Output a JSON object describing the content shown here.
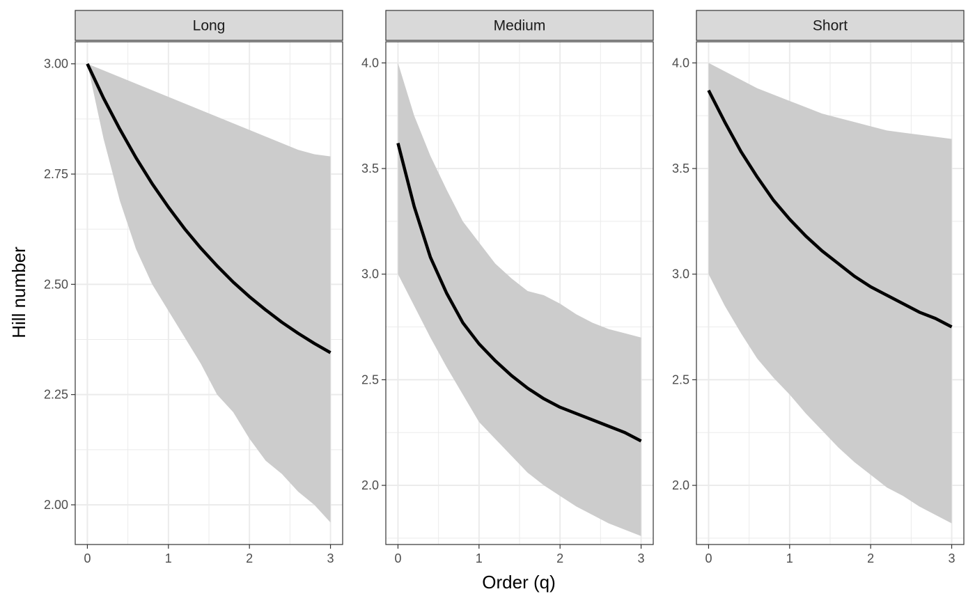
{
  "chart_data": {
    "type": "line",
    "layout": "facets",
    "xlabel": "Order (q)",
    "ylabel": "Hill number",
    "grid": true,
    "legend": "none",
    "colors": {
      "line": "#000000",
      "ribbon": "#cccccc",
      "strip": "#d9d9d9",
      "grid": "#ebebeb",
      "border": "#333333"
    },
    "facets": [
      {
        "label": "Long",
        "xlim": [
          -0.15,
          3.15
        ],
        "ylim": [
          1.91,
          3.05
        ],
        "x_ticks": [
          0,
          1,
          2,
          3
        ],
        "y_ticks": [
          2.0,
          2.25,
          2.5,
          2.75,
          3.0
        ],
        "y_tick_labels": [
          "2.00",
          "2.25",
          "2.50",
          "2.75",
          "3.00"
        ],
        "x": [
          0,
          0.2,
          0.4,
          0.6,
          0.8,
          1.0,
          1.2,
          1.4,
          1.6,
          1.8,
          2.0,
          2.2,
          2.4,
          2.6,
          2.8,
          3.0
        ],
        "line": [
          3.0,
          2.922,
          2.852,
          2.787,
          2.728,
          2.675,
          2.626,
          2.582,
          2.542,
          2.505,
          2.472,
          2.442,
          2.414,
          2.389,
          2.366,
          2.345
        ],
        "lower": [
          3.0,
          2.83,
          2.69,
          2.58,
          2.5,
          2.44,
          2.38,
          2.32,
          2.25,
          2.21,
          2.15,
          2.1,
          2.07,
          2.03,
          2.0,
          1.96
        ],
        "upper": [
          3.0,
          2.985,
          2.97,
          2.955,
          2.94,
          2.925,
          2.91,
          2.895,
          2.88,
          2.865,
          2.85,
          2.835,
          2.82,
          2.805,
          2.795,
          2.79
        ]
      },
      {
        "label": "Medium",
        "xlim": [
          -0.15,
          3.15
        ],
        "ylim": [
          1.72,
          4.1
        ],
        "x_ticks": [
          0,
          1,
          2,
          3
        ],
        "y_ticks": [
          2.0,
          2.5,
          3.0,
          3.5,
          4.0
        ],
        "y_tick_labels": [
          "2.0",
          "2.5",
          "3.0",
          "3.5",
          "4.0"
        ],
        "x": [
          0,
          0.2,
          0.4,
          0.6,
          0.8,
          1.0,
          1.2,
          1.4,
          1.6,
          1.8,
          2.0,
          2.2,
          2.4,
          2.6,
          2.8,
          3.0
        ],
        "line": [
          3.62,
          3.32,
          3.08,
          2.91,
          2.77,
          2.67,
          2.59,
          2.52,
          2.46,
          2.41,
          2.37,
          2.34,
          2.31,
          2.28,
          2.25,
          2.21
        ],
        "lower": [
          3.0,
          2.85,
          2.7,
          2.56,
          2.43,
          2.3,
          2.22,
          2.14,
          2.06,
          2.0,
          1.95,
          1.9,
          1.86,
          1.82,
          1.79,
          1.76
        ],
        "upper": [
          4.0,
          3.75,
          3.56,
          3.4,
          3.25,
          3.15,
          3.05,
          2.98,
          2.92,
          2.9,
          2.86,
          2.81,
          2.77,
          2.74,
          2.72,
          2.7
        ]
      },
      {
        "label": "Short",
        "xlim": [
          -0.15,
          3.15
        ],
        "ylim": [
          1.72,
          4.1
        ],
        "x_ticks": [
          0,
          1,
          2,
          3
        ],
        "y_ticks": [
          2.0,
          2.5,
          3.0,
          3.5,
          4.0
        ],
        "y_tick_labels": [
          "2.0",
          "2.5",
          "3.0",
          "3.5",
          "4.0"
        ],
        "x": [
          0,
          0.2,
          0.4,
          0.6,
          0.8,
          1.0,
          1.2,
          1.4,
          1.6,
          1.8,
          2.0,
          2.2,
          2.4,
          2.6,
          2.8,
          3.0
        ],
        "line": [
          3.87,
          3.72,
          3.58,
          3.46,
          3.35,
          3.26,
          3.18,
          3.11,
          3.05,
          2.99,
          2.94,
          2.9,
          2.86,
          2.82,
          2.79,
          2.75
        ],
        "lower": [
          3.0,
          2.85,
          2.72,
          2.6,
          2.51,
          2.43,
          2.34,
          2.26,
          2.18,
          2.11,
          2.05,
          1.99,
          1.95,
          1.9,
          1.86,
          1.82
        ],
        "upper": [
          4.0,
          3.96,
          3.92,
          3.88,
          3.85,
          3.82,
          3.79,
          3.76,
          3.74,
          3.72,
          3.7,
          3.68,
          3.67,
          3.66,
          3.65,
          3.64
        ]
      }
    ]
  }
}
